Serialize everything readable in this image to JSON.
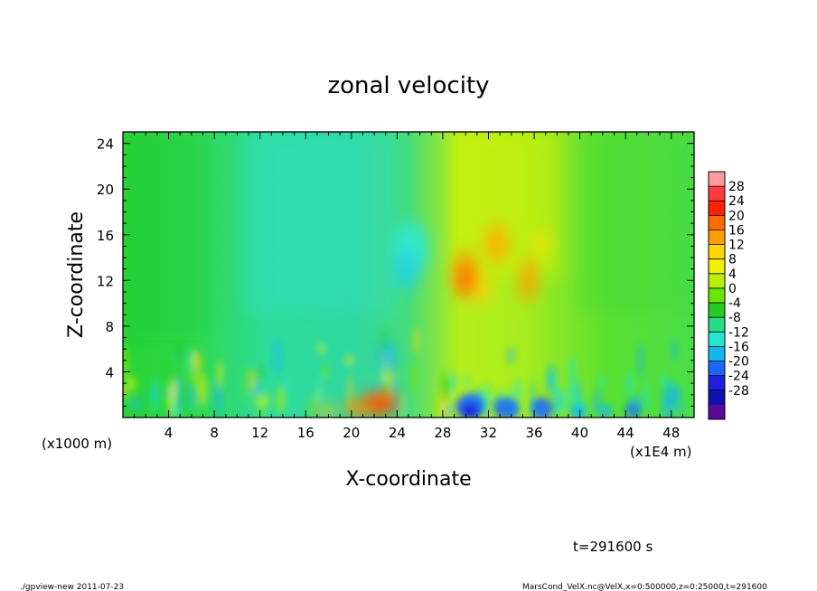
{
  "chart_data": {
    "type": "heatmap",
    "title": "zonal velocity",
    "xlabel": "X-coordinate",
    "ylabel": "Z-coordinate",
    "x_unit_left": "(x1000 m)",
    "x_unit_right": "(x1E4 m)",
    "xlim": [
      0,
      50
    ],
    "ylim": [
      0,
      25
    ],
    "xticks": [
      "4",
      "8",
      "12",
      "16",
      "20",
      "24",
      "28",
      "32",
      "36",
      "40",
      "44",
      "48"
    ],
    "yticks": [
      "4",
      "8",
      "12",
      "16",
      "20",
      "24"
    ],
    "colorbar": {
      "levels": [
        "28",
        "24",
        "20",
        "16",
        "12",
        "8",
        "4",
        "0",
        "-4",
        "-8",
        "-12",
        "-16",
        "-20",
        "-24",
        "-28"
      ],
      "colors": [
        "#ff9a9a",
        "#ff3c3c",
        "#ff2200",
        "#ff6a00",
        "#ff9e00",
        "#ffd600",
        "#f2f200",
        "#b8f000",
        "#66e600",
        "#22cc22",
        "#22dd88",
        "#22e8d0",
        "#10b8f0",
        "#1a66ff",
        "#1e1ee0",
        "#1010b0",
        "#5a0a9a"
      ]
    },
    "features": [
      {
        "x": 30,
        "z": 12,
        "value": 16
      },
      {
        "x": 32,
        "z": 15,
        "value": 14
      },
      {
        "x": 36,
        "z": 12,
        "value": 12
      },
      {
        "x": 22,
        "z": 1,
        "value": 20
      },
      {
        "x": 31,
        "z": 1,
        "value": -18
      },
      {
        "x": 35,
        "z": 1,
        "value": -16
      },
      {
        "x": 25,
        "z": 15,
        "value": -10
      },
      {
        "x": 23,
        "z": 5,
        "value": -12
      }
    ]
  },
  "footer": {
    "time_label": "t=291600 s",
    "left_note": "./gpview-new  2011-07-23",
    "right_note": "MarsCond_VelX.nc@VelX,x=0:500000,z=0:25000,t=291600"
  }
}
